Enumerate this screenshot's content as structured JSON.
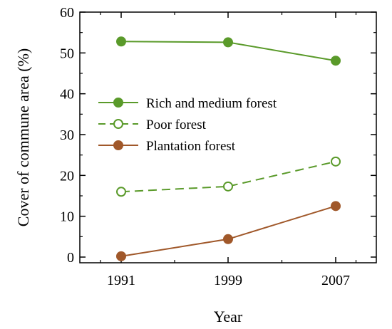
{
  "chart_data": {
    "type": "line",
    "xlabel": "Year",
    "ylabel": "Cover of commune area (%)",
    "categories": [
      "1991",
      "1999",
      "2007"
    ],
    "ylim": [
      0,
      60
    ],
    "yticks": [
      0,
      10,
      20,
      30,
      40,
      50,
      60
    ],
    "legend_position": "center-left",
    "grid": false,
    "series": [
      {
        "name": "Rich and medium forest",
        "values": [
          52.8,
          52.6,
          48.1
        ],
        "color": "#5a9a2a",
        "marker": "filled-circle",
        "line": "solid"
      },
      {
        "name": "Poor forest",
        "values": [
          16.0,
          17.3,
          23.4
        ],
        "color": "#5a9a2a",
        "marker": "open-circle",
        "line": "dashed"
      },
      {
        "name": "Plantation forest",
        "values": [
          0.2,
          4.4,
          12.5
        ],
        "color": "#a0582a",
        "marker": "filled-circle",
        "line": "solid"
      }
    ]
  }
}
